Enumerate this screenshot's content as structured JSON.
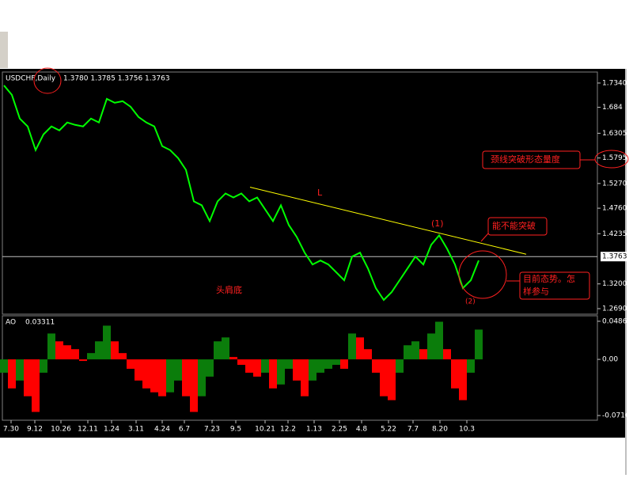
{
  "chart_data": [
    {
      "type": "line",
      "title": "USDCHF,Daily",
      "ohlc": "1.3780 1.3785 1.3756 1.3763",
      "xlim": [
        0,
        150
      ],
      "ylim": [
        1.2592,
        1.7551
      ],
      "yticks": [
        {
          "value": 1.734,
          "label": "1.7340"
        },
        1.684,
        1.6305,
        1.5795,
        {
          "value": 1.527,
          "label": "1.5270"
        },
        {
          "value": 1.476,
          "label": "1.4760"
        },
        1.4235,
        {
          "value": 1.32,
          "label": "1.3200"
        },
        {
          "value": 1.269,
          "label": "1.2690"
        }
      ],
      "current_price": 1.3763,
      "current_price_color": "#c0c0c0",
      "series": [
        {
          "name": "USDCHF",
          "color": "#00ff00",
          "x": [
            0,
            2,
            4,
            6,
            8,
            10,
            12,
            14,
            16,
            18,
            20,
            22,
            24,
            26,
            28,
            30,
            32,
            34,
            36,
            38,
            40,
            42,
            44,
            46,
            48,
            50,
            52,
            54,
            56,
            58,
            60,
            62,
            64,
            66,
            68,
            70,
            72,
            74,
            76,
            78,
            80,
            82,
            84,
            86,
            88,
            90,
            92,
            94,
            96,
            98,
            100,
            102,
            104,
            106,
            108,
            110,
            112,
            114,
            116,
            118,
            120
          ],
          "values": [
            1.7291,
            1.7096,
            1.6608,
            1.6446,
            1.5958,
            1.6283,
            1.6446,
            1.6364,
            1.6527,
            1.6478,
            1.6446,
            1.6608,
            1.6527,
            1.7015,
            1.6933,
            1.6966,
            1.6852,
            1.6641,
            1.6527,
            1.6446,
            1.6039,
            1.5958,
            1.5795,
            1.5551,
            1.4901,
            1.482,
            1.4495,
            1.4901,
            1.5064,
            1.4982,
            1.5064,
            1.4901,
            1.4982,
            1.4738,
            1.4495,
            1.482,
            1.4413,
            1.4169,
            1.3844,
            1.36,
            1.3682,
            1.36,
            1.3438,
            1.3275,
            1.3763,
            1.3844,
            1.3519,
            1.3113,
            1.2869,
            1.3031,
            1.3275,
            1.3519,
            1.3763,
            1.36,
            1.4007,
            1.4202,
            1.3925,
            1.36,
            1.3113,
            1.3275,
            1.3682
          ]
        }
      ],
      "trendline": {
        "label": "L",
        "color": "#ffff00",
        "x": [
          62.2,
          132
        ],
        "values": [
          1.5194,
          1.3812
        ]
      },
      "annotations": [
        "头肩底",
        "(1)",
        "(2)",
        "颈线突破形态量度",
        "能不能突破",
        "目前态势。怎",
        "样参与"
      ]
    },
    {
      "type": "bar",
      "title": "AO",
      "current_value": 0.03311,
      "xlim": [
        0,
        150
      ],
      "ylim": [
        -0.0766,
        0.0546
      ],
      "yticks": [
        0.0486,
        {
          "value": 0,
          "label": "0.00"
        },
        -0.0716
      ],
      "up_color": "#0b7d0b",
      "down_color": "#ff0000",
      "xticks": [
        {
          "value": 1.8,
          "label": "7.30"
        },
        {
          "value": 7.8,
          "label": "9.12"
        },
        {
          "value": 14.4,
          "label": "10.26"
        },
        {
          "value": 21.2,
          "label": "12.11"
        },
        {
          "value": 27.2,
          "label": "1.24"
        },
        {
          "value": 33.4,
          "label": "3.11"
        },
        {
          "value": 40,
          "label": "4.24"
        },
        {
          "value": 45.6,
          "label": "6.7"
        },
        {
          "value": 52.6,
          "label": "7.23"
        },
        {
          "value": 58.6,
          "label": "9.5"
        },
        {
          "value": 66,
          "label": "10.21"
        },
        {
          "value": 71.8,
          "label": "12.2"
        },
        {
          "value": 78.4,
          "label": "1.13"
        },
        {
          "value": 84.8,
          "label": "2.25"
        },
        {
          "value": 90.4,
          "label": "4.8"
        },
        {
          "value": 97.2,
          "label": "5.22"
        },
        {
          "value": 103.4,
          "label": "7.7"
        },
        {
          "value": 110.2,
          "label": "8.20"
        },
        {
          "value": 117,
          "label": "10.3"
        }
      ],
      "x": [
        0,
        2,
        4,
        6,
        8,
        10,
        12,
        14,
        16,
        18,
        20,
        22,
        24,
        26,
        28,
        30,
        32,
        34,
        36,
        38,
        40,
        42,
        44,
        46,
        48,
        50,
        52,
        54,
        56,
        58,
        60,
        62,
        64,
        66,
        68,
        70,
        72,
        74,
        76,
        78,
        80,
        82,
        84,
        86,
        88,
        90,
        92,
        94,
        96,
        98,
        100,
        102,
        104,
        106,
        108,
        110,
        112,
        114,
        116,
        118,
        120
      ],
      "values": [
        -0.017,
        -0.037,
        -0.027,
        -0.047,
        -0.067,
        -0.017,
        0.033,
        0.023,
        0.018,
        0.013,
        -0.002,
        0.008,
        0.023,
        0.043,
        0.023,
        0.008,
        -0.012,
        -0.027,
        -0.037,
        -0.042,
        -0.047,
        -0.042,
        -0.027,
        -0.047,
        -0.067,
        -0.047,
        -0.022,
        0.023,
        0.028,
        0.003,
        -0.007,
        -0.017,
        -0.022,
        -0.017,
        -0.037,
        -0.032,
        -0.012,
        -0.027,
        -0.047,
        -0.027,
        -0.017,
        -0.012,
        -0.007,
        -0.012,
        0.033,
        0.028,
        0.013,
        -0.017,
        -0.047,
        -0.052,
        -0.017,
        0.018,
        0.023,
        0.013,
        0.033,
        0.048,
        0.013,
        -0.037,
        -0.052,
        -0.017,
        0.038
      ]
    }
  ]
}
